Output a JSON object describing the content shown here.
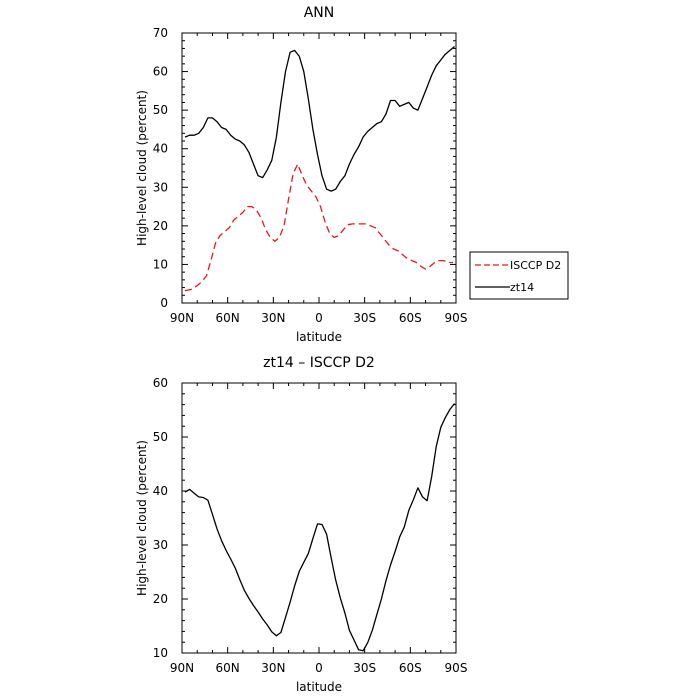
{
  "chart_data": [
    {
      "type": "line",
      "title": "ANN",
      "xlabel": "latitude",
      "ylabel": "High-level cloud (percent)",
      "xlim": [
        90,
        -90
      ],
      "ylim": [
        0,
        70
      ],
      "xticks": [
        90,
        60,
        30,
        0,
        -30,
        -60,
        -90
      ],
      "xtick_labels": [
        "90N",
        "60N",
        "30N",
        "0",
        "30S",
        "60S",
        "90S"
      ],
      "yticks": [
        0,
        10,
        20,
        30,
        40,
        50,
        60,
        70
      ],
      "ytick_labels": [
        "0",
        "10",
        "20",
        "30",
        "40",
        "50",
        "60",
        "70"
      ],
      "legend": "right",
      "series": [
        {
          "name": "ISCCP D2",
          "color": "#e8191c",
          "dash": "dashed",
          "x": [
            88,
            84,
            80,
            77,
            74,
            71,
            68,
            65,
            62,
            59,
            56,
            53,
            50,
            47,
            44,
            41,
            38,
            35,
            32,
            29,
            26,
            23,
            20,
            17,
            14,
            11,
            8,
            5,
            2,
            -1,
            -4,
            -7,
            -10,
            -13,
            -16,
            -19,
            -22,
            -25,
            -28,
            -31,
            -34,
            -37,
            -40,
            -43,
            -46,
            -49,
            -52,
            -55,
            -58,
            -61,
            -64,
            -67,
            -70,
            -73,
            -76,
            -79,
            -82,
            -85,
            -88
          ],
          "y": [
            3.2,
            3.5,
            4.5,
            5.5,
            7.0,
            11.0,
            15.5,
            17.5,
            18.5,
            19.5,
            21.5,
            22.5,
            23.5,
            25.0,
            25.0,
            24.0,
            22.0,
            19.0,
            17.0,
            16.0,
            17.0,
            20.0,
            27.0,
            33.5,
            36.0,
            33.0,
            30.5,
            29.0,
            27.5,
            25.0,
            21.0,
            18.0,
            17.0,
            17.5,
            19.0,
            20.3,
            20.5,
            20.5,
            20.5,
            20.5,
            20.0,
            19.5,
            18.0,
            16.5,
            15.0,
            14.0,
            13.5,
            12.5,
            11.5,
            11.0,
            10.5,
            9.5,
            8.8,
            9.5,
            10.5,
            11.0,
            11.0,
            10.5,
            10.5
          ]
        },
        {
          "name": "zt14",
          "color": "#000000",
          "dash": "solid",
          "x": [
            88,
            85,
            82,
            79,
            76,
            73,
            70,
            67,
            64,
            61,
            58,
            55,
            52,
            49,
            46,
            43,
            40,
            37,
            34,
            31,
            28,
            25,
            22,
            19,
            16,
            13,
            10,
            7,
            4,
            1,
            -2,
            -5,
            -8,
            -11,
            -14,
            -17,
            -20,
            -23,
            -26,
            -29,
            -32,
            -35,
            -38,
            -41,
            -44,
            -47,
            -50,
            -53,
            -56,
            -59,
            -62,
            -65,
            -68,
            -71,
            -74,
            -77,
            -80,
            -83,
            -86,
            -89
          ],
          "y": [
            43.0,
            43.5,
            43.5,
            44.0,
            45.5,
            48.0,
            48.0,
            47.0,
            45.5,
            45.0,
            43.5,
            42.5,
            42.0,
            41.0,
            39.0,
            36.0,
            33.0,
            32.5,
            34.5,
            37.0,
            43.0,
            52.0,
            60.0,
            65.0,
            65.5,
            64.0,
            60.0,
            53.0,
            45.0,
            38.5,
            33.0,
            29.5,
            29.0,
            29.5,
            31.5,
            33.0,
            36.0,
            38.5,
            40.5,
            43.0,
            44.5,
            45.5,
            46.5,
            47.0,
            49.0,
            52.5,
            52.5,
            51.0,
            51.5,
            52.0,
            50.5,
            50.0,
            53.0,
            56.0,
            59.0,
            61.5,
            63.0,
            64.5,
            65.5,
            66.5
          ]
        }
      ]
    },
    {
      "type": "line",
      "title": "zt14 – ISCCP D2",
      "xlabel": "latitude",
      "ylabel": "High-level cloud (percent)",
      "xlim": [
        90,
        -90
      ],
      "ylim": [
        10,
        60
      ],
      "xticks": [
        90,
        60,
        30,
        0,
        -30,
        -60,
        -90
      ],
      "xtick_labels": [
        "90N",
        "60N",
        "30N",
        "0",
        "30S",
        "60S",
        "90S"
      ],
      "yticks": [
        10,
        20,
        30,
        40,
        50,
        60
      ],
      "ytick_labels": [
        "10",
        "20",
        "30",
        "40",
        "50",
        "60"
      ],
      "series": [
        {
          "color": "#000000",
          "dash": "solid",
          "x": [
            88,
            85,
            82,
            79,
            76,
            73,
            70,
            67,
            64,
            61,
            58,
            55,
            52,
            49,
            46,
            43,
            40,
            37,
            34,
            31,
            28,
            25,
            22,
            19,
            16,
            13,
            10,
            7,
            4,
            1,
            -2,
            -5,
            -8,
            -11,
            -14,
            -17,
            -20,
            -23,
            -26,
            -29,
            -32,
            -35,
            -38,
            -41,
            -44,
            -47,
            -50,
            -53,
            -56,
            -59,
            -62,
            -65,
            -68,
            -71,
            -74,
            -77,
            -80,
            -83,
            -86,
            -89
          ],
          "y": [
            39.8,
            40.3,
            39.6,
            38.9,
            38.8,
            38.3,
            35.7,
            33.0,
            30.8,
            29.0,
            27.4,
            25.7,
            23.6,
            21.6,
            20.1,
            18.8,
            17.6,
            16.3,
            15.2,
            13.9,
            13.2,
            13.8,
            16.6,
            19.4,
            22.4,
            25.1,
            26.8,
            28.4,
            31.2,
            33.9,
            33.8,
            32.0,
            27.6,
            23.5,
            20.2,
            17.4,
            14.2,
            12.4,
            10.6,
            10.4,
            11.9,
            14.2,
            17.1,
            20.0,
            23.4,
            26.3,
            28.8,
            31.5,
            33.3,
            36.4,
            38.4,
            40.6,
            38.9,
            38.2,
            42.6,
            48.2,
            51.8,
            53.6,
            55.1,
            56.2
          ]
        }
      ]
    }
  ]
}
